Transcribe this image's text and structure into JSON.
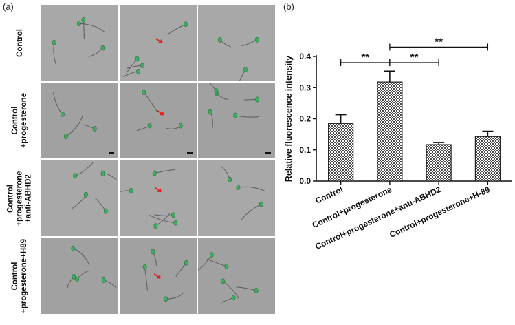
{
  "panel_a": {
    "label": "(a)",
    "row_labels": [
      [
        "Control"
      ],
      [
        "Control",
        "+progesterone"
      ],
      [
        "Control",
        "+progesterone",
        "+anti-ABHD2"
      ],
      [
        "Control",
        "+progesterone+H89"
      ]
    ]
  },
  "panel_b": {
    "label": "(b)"
  },
  "chart_data": {
    "type": "bar",
    "title": "",
    "xlabel": "",
    "ylabel": "Relative fluorescence intensity",
    "categories": [
      "Control",
      "Control+progesterone",
      "Control+progesterone+anti-ABHD2",
      "Control+progesterone+H-89"
    ],
    "values": [
      0.185,
      0.318,
      0.117,
      0.143
    ],
    "errors": [
      0.028,
      0.035,
      0.007,
      0.017
    ],
    "ylim": [
      0.0,
      0.4
    ],
    "yticks": [
      "0.0",
      "0.1",
      "0.2",
      "0.3",
      "0.4"
    ],
    "significance": [
      {
        "from": 0,
        "to": 1,
        "label": "**",
        "y": 0.38
      },
      {
        "from": 1,
        "to": 2,
        "label": "**",
        "y": 0.38
      },
      {
        "from": 1,
        "to": 3,
        "label": "**",
        "y": 0.43
      }
    ],
    "bar_fill": "checkered-hatch",
    "bar_color": "#5a5a5a",
    "grid": false,
    "legend": "none"
  }
}
